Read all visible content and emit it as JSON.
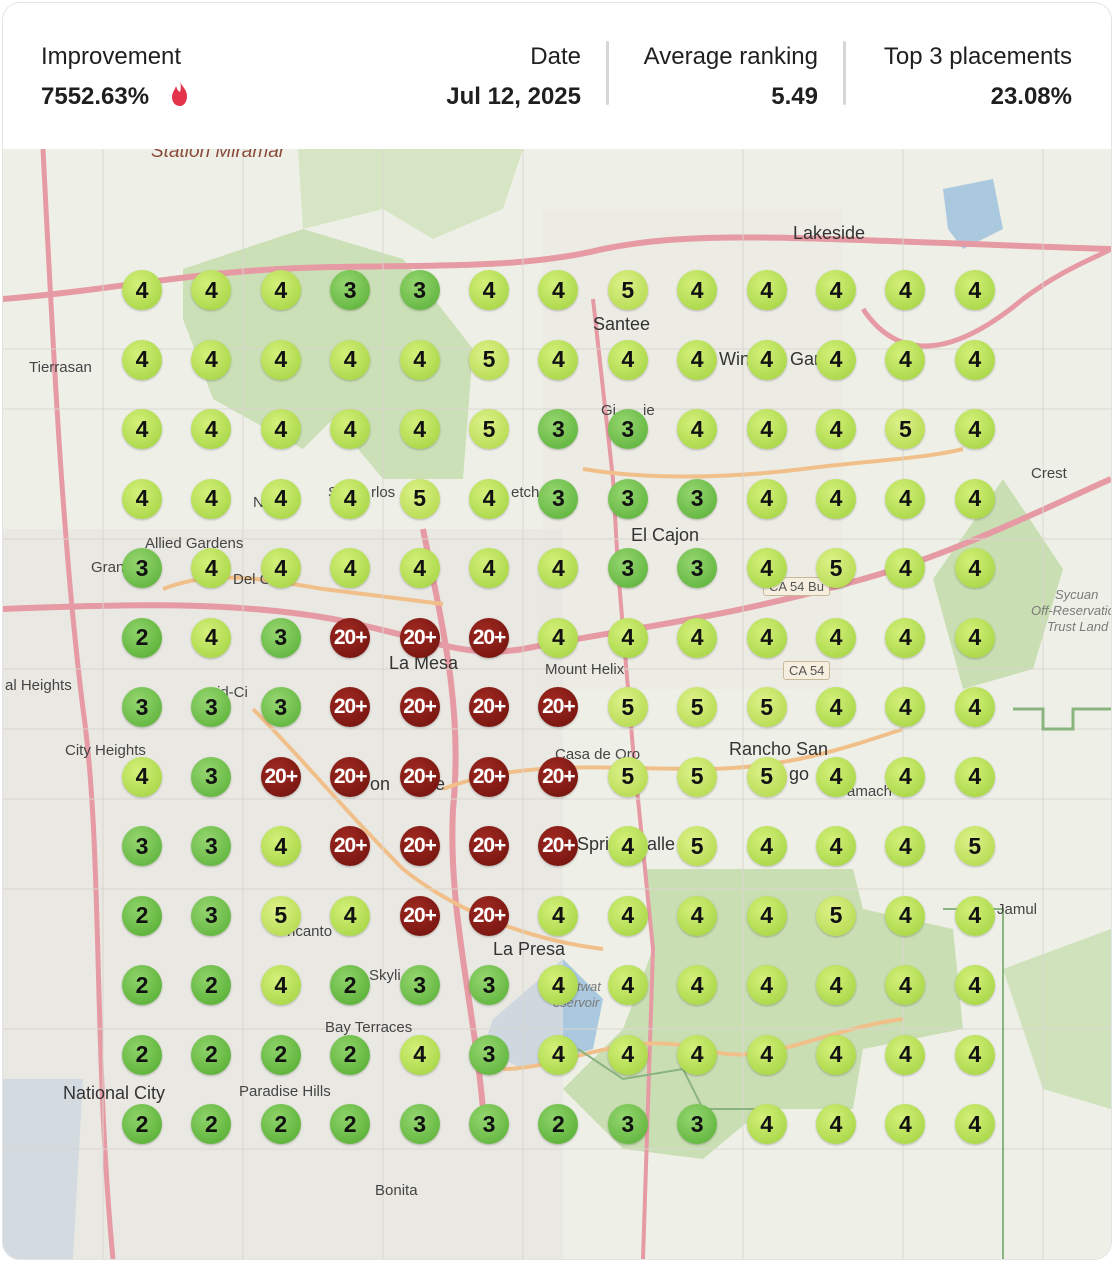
{
  "header": {
    "improvement_label": "Improvement",
    "improvement_value": "7552.63%",
    "date_label": "Date",
    "date_value": "Jul 12, 2025",
    "avg_label": "Average ranking",
    "avg_value": "5.49",
    "top3_label": "Top 3 placements",
    "top3_value": "23.08%",
    "icon": "fire-icon"
  },
  "colors": {
    "rank_top": "#4faa2c",
    "rank_mid": "#9fd13c",
    "rank_out": "#7a1410",
    "fire": "#e2344a"
  },
  "map": {
    "places": [
      "Station Miramar",
      "Lakeside",
      "Santee",
      "Tierrasan",
      "Win",
      "Gard",
      "Gi",
      "ie",
      "Crest",
      "Allied Gardens",
      "Gran",
      "Del C",
      "N",
      "S",
      "rlos",
      "etch",
      "El Cajon",
      "CA 54 Bu",
      "Sycuan",
      "Off-Reservatio",
      "Trust Land",
      "CA 54",
      "La Mesa",
      "Mount Helix",
      "al Heights",
      "id-Ci",
      "City Heights",
      "Rancho San",
      "go",
      "amach",
      "Casa de Oro",
      "on",
      "e",
      "Spri",
      "alle",
      "Jamul",
      "ncanto",
      "La Presa",
      "Skyli",
      "twat",
      "eservoir",
      "Bay Terraces",
      "National City",
      "Paradise Hills",
      "Bonita"
    ],
    "grid": [
      [
        "4",
        "4",
        "4",
        "3",
        "3",
        "4",
        "4",
        "5",
        "4",
        "4",
        "4",
        "4",
        "4"
      ],
      [
        "4",
        "4",
        "4",
        "4",
        "4",
        "5",
        "4",
        "4",
        "4",
        "4",
        "4",
        "4",
        "4"
      ],
      [
        "4",
        "4",
        "4",
        "4",
        "4",
        "5",
        "3",
        "3",
        "4",
        "4",
        "4",
        "5",
        "4"
      ],
      [
        "4",
        "4",
        "4",
        "4",
        "5",
        "4",
        "3",
        "3",
        "3",
        "4",
        "4",
        "4",
        "4"
      ],
      [
        "3",
        "4",
        "4",
        "4",
        "4",
        "4",
        "4",
        "3",
        "3",
        "4",
        "5",
        "4",
        "4"
      ],
      [
        "2",
        "4",
        "3",
        "20+",
        "20+",
        "20+",
        "4",
        "4",
        "4",
        "4",
        "4",
        "4",
        "4"
      ],
      [
        "3",
        "3",
        "3",
        "20+",
        "20+",
        "20+",
        "20+",
        "5",
        "5",
        "5",
        "4",
        "4",
        "4"
      ],
      [
        "4",
        "3",
        "20+",
        "20+",
        "20+",
        "20+",
        "20+",
        "5",
        "5",
        "5",
        "4",
        "4",
        "4"
      ],
      [
        "3",
        "3",
        "4",
        "20+",
        "20+",
        "20+",
        "20+",
        "4",
        "5",
        "4",
        "4",
        "4",
        "5"
      ],
      [
        "2",
        "3",
        "5",
        "4",
        "20+",
        "20+",
        "4",
        "4",
        "4",
        "4",
        "5",
        "4",
        "4"
      ],
      [
        "2",
        "2",
        "4",
        "2",
        "3",
        "3",
        "4",
        "4",
        "4",
        "4",
        "4",
        "4",
        "4"
      ],
      [
        "2",
        "2",
        "2",
        "2",
        "4",
        "3",
        "4",
        "4",
        "4",
        "4",
        "4",
        "4",
        "4"
      ],
      [
        "2",
        "2",
        "2",
        "2",
        "3",
        "3",
        "2",
        "3",
        "3",
        "4",
        "4",
        "4",
        "4"
      ]
    ]
  }
}
